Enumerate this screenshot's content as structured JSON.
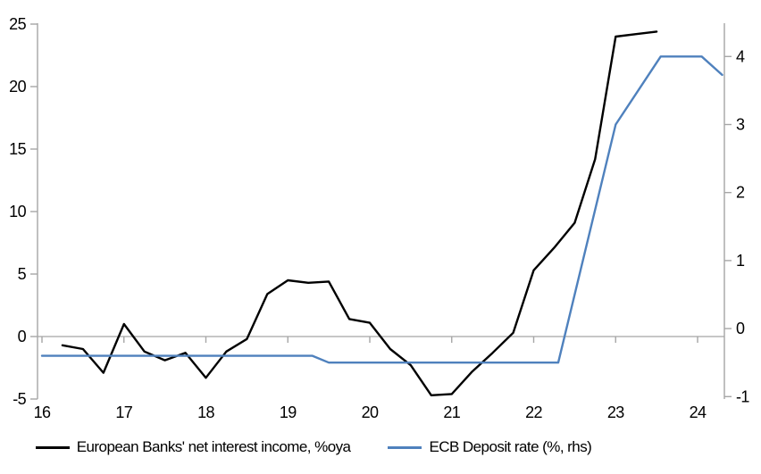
{
  "chart_data": {
    "type": "line",
    "title": "",
    "x_axis": {
      "tick_labels": [
        "16",
        "17",
        "18",
        "19",
        "20",
        "21",
        "22",
        "23",
        "24"
      ],
      "tick_values": [
        16,
        17,
        18,
        19,
        20,
        21,
        22,
        23,
        24
      ],
      "range": [
        15.95,
        24.33
      ],
      "axis_position": "zero-line"
    },
    "y_left": {
      "tick_labels": [
        "-5",
        "0",
        "5",
        "10",
        "15",
        "20",
        "25"
      ],
      "tick_values": [
        -5,
        0,
        5,
        10,
        15,
        20,
        25
      ],
      "range": [
        -5,
        25
      ]
    },
    "y_right": {
      "tick_labels": [
        "-1",
        "0",
        "1",
        "2",
        "3",
        "4"
      ],
      "tick_values": [
        -1,
        0,
        1,
        2,
        3,
        4
      ],
      "range": [
        -1.04,
        4.5
      ]
    },
    "grid": "zero-line-only",
    "legend_position": "bottom",
    "series": [
      {
        "name": "European Banks' net interest income, %oya",
        "color": "#000000",
        "axis": "left",
        "points": [
          [
            16.25,
            -0.7
          ],
          [
            16.5,
            -1.0
          ],
          [
            16.75,
            -2.9
          ],
          [
            17.0,
            1.0
          ],
          [
            17.25,
            -1.2
          ],
          [
            17.5,
            -1.9
          ],
          [
            17.75,
            -1.3
          ],
          [
            18.0,
            -3.3
          ],
          [
            18.25,
            -1.2
          ],
          [
            18.5,
            -0.2
          ],
          [
            18.75,
            3.4
          ],
          [
            19.0,
            4.5
          ],
          [
            19.25,
            4.3
          ],
          [
            19.5,
            4.4
          ],
          [
            19.75,
            1.4
          ],
          [
            20.0,
            1.1
          ],
          [
            20.25,
            -1.0
          ],
          [
            20.5,
            -2.3
          ],
          [
            20.75,
            -4.7
          ],
          [
            21.0,
            -4.6
          ],
          [
            21.25,
            -2.8
          ],
          [
            21.5,
            -1.3
          ],
          [
            21.75,
            0.3
          ],
          [
            22.0,
            5.3
          ],
          [
            22.25,
            7.1
          ],
          [
            22.5,
            9.1
          ],
          [
            22.75,
            14.2
          ],
          [
            23.0,
            24.0
          ],
          [
            23.25,
            24.2
          ],
          [
            23.5,
            24.4
          ]
        ]
      },
      {
        "name": "ECB Deposit rate (%, rhs)",
        "color": "#4F81BD",
        "axis": "right",
        "points": [
          [
            16.0,
            -0.4
          ],
          [
            19.3,
            -0.4
          ],
          [
            19.5,
            -0.5
          ],
          [
            22.3,
            -0.5
          ],
          [
            23.0,
            3.0
          ],
          [
            23.55,
            4.0
          ],
          [
            24.05,
            4.0
          ],
          [
            24.3,
            3.73
          ]
        ]
      }
    ]
  },
  "colors": {
    "axis": "#a6a6a6",
    "zero_line": "#b3b3b3",
    "text": "#000000",
    "background": "#ffffff"
  }
}
